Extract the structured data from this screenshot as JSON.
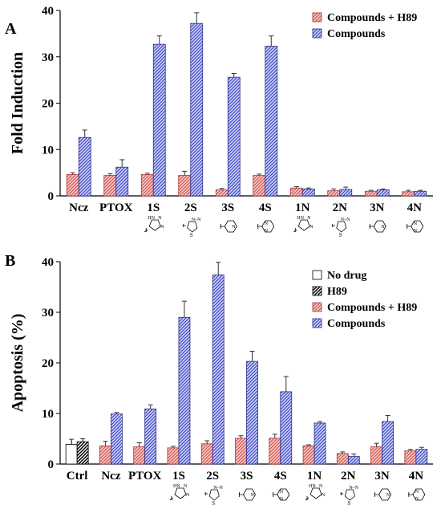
{
  "chart_data": [
    {
      "type": "bar",
      "panel_label": "A",
      "title": "",
      "xlabel": "",
      "ylabel": "Fold Induction",
      "ylim": [
        0,
        40
      ],
      "yticks": [
        0,
        10,
        20,
        30,
        40
      ],
      "grid": false,
      "legend_position": "top-right",
      "categories": [
        "Ncz",
        "PTOX",
        "1S",
        "2S",
        "3S",
        "4S",
        "1N",
        "2N",
        "3N",
        "4N"
      ],
      "series": [
        {
          "name": "Compounds + H89",
          "color": "#d9534f",
          "hatch": "red-diagonal",
          "values": [
            4.6,
            4.4,
            4.6,
            4.4,
            1.3,
            4.4,
            1.7,
            1.1,
            1.0,
            0.9
          ],
          "errors": [
            0.4,
            0.4,
            0.3,
            0.9,
            0.3,
            0.3,
            0.3,
            0.4,
            0.2,
            0.3
          ]
        },
        {
          "name": "Compounds",
          "color": "#3f48cc",
          "hatch": "blue-diagonal",
          "values": [
            12.6,
            6.2,
            32.7,
            37.2,
            25.6,
            32.3,
            1.5,
            1.4,
            1.3,
            1.0
          ],
          "errors": [
            1.6,
            1.6,
            1.8,
            2.3,
            0.8,
            2.2,
            0.2,
            0.5,
            0.2,
            0.2
          ]
        }
      ]
    },
    {
      "type": "bar",
      "panel_label": "B",
      "title": "",
      "xlabel": "",
      "ylabel": "Apoptosis (%)",
      "ylim": [
        0,
        40
      ],
      "yticks": [
        0,
        10,
        20,
        30,
        40
      ],
      "grid": false,
      "legend_position": "top-right",
      "categories": [
        "Ctrl",
        "Ncz",
        "PTOX",
        "1S",
        "2S",
        "3S",
        "4S",
        "1N",
        "2N",
        "3N",
        "4N"
      ],
      "series": [
        {
          "name": "No drug",
          "color": "#ffffff",
          "hatch": "none",
          "values": [
            3.9,
            null,
            null,
            null,
            null,
            null,
            null,
            null,
            null,
            null,
            null
          ],
          "errors": [
            1.0,
            null,
            null,
            null,
            null,
            null,
            null,
            null,
            null,
            null,
            null
          ]
        },
        {
          "name": "H89",
          "color": "#000000",
          "hatch": "black-diagonal",
          "values": [
            4.4,
            null,
            null,
            null,
            null,
            null,
            null,
            null,
            null,
            null,
            null
          ],
          "errors": [
            0.6,
            null,
            null,
            null,
            null,
            null,
            null,
            null,
            null,
            null,
            null
          ]
        },
        {
          "name": "Compounds + H89",
          "color": "#d9534f",
          "hatch": "red-diagonal",
          "values": [
            null,
            3.6,
            3.4,
            3.2,
            4.0,
            5.1,
            5.1,
            3.6,
            2.1,
            3.4,
            2.6
          ],
          "errors": [
            null,
            0.9,
            0.8,
            0.3,
            0.6,
            0.5,
            0.8,
            0.2,
            0.3,
            0.7,
            0.3
          ]
        },
        {
          "name": "Compounds",
          "color": "#3f48cc",
          "hatch": "blue-diagonal",
          "values": [
            null,
            9.9,
            10.9,
            29.0,
            37.4,
            20.3,
            14.3,
            8.1,
            1.5,
            8.4,
            2.9
          ],
          "errors": [
            null,
            0.3,
            0.8,
            3.2,
            2.5,
            2.0,
            3.0,
            0.3,
            0.5,
            1.2,
            0.4
          ]
        }
      ]
    }
  ],
  "structure_icons": {
    "1S": "triazole-icon",
    "2S": "thiadiazole-icon",
    "3S": "pyridine-icon",
    "4S": "pyrimidine-icon",
    "1N": "triazole-icon",
    "2N": "thiadiazole-icon",
    "3N": "pyridine-icon",
    "4N": "pyrimidine-icon"
  }
}
